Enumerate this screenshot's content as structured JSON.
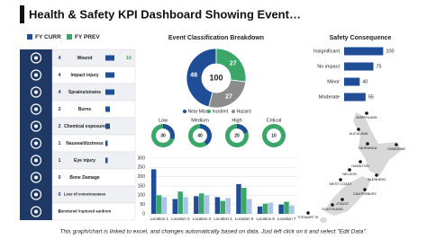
{
  "title": "Health & Safety KPI Dashboard Showing Event…",
  "legend": [
    {
      "label": "FY CURR",
      "color": "#1f4e96"
    },
    {
      "label": "FY PREV",
      "color": "#3aa66a"
    }
  ],
  "injuries": {
    "xlim": [
      0,
      12
    ],
    "color": "#1f4e96",
    "rows": [
      {
        "label": "Wound",
        "value": 4,
        "prev": 10
      },
      {
        "label": "Impact injury",
        "value": 4
      },
      {
        "label": "Sprains/strains",
        "value": 4
      },
      {
        "label": "Burns",
        "value": 2
      },
      {
        "label": "Chemical exposure",
        "value": 2
      },
      {
        "label": "Nausea/dizziness",
        "value": 1
      },
      {
        "label": "Eye injury",
        "value": 1
      },
      {
        "label": "Bone Damage",
        "value": 0
      },
      {
        "label": "Loss of consciousness",
        "value": 0
      },
      {
        "label": "Punctured /ruptured eardrum",
        "value": 0
      }
    ]
  },
  "chart_data": [
    {
      "type": "pie",
      "title": "Event Classification Breakdown",
      "total": 100,
      "categories": [
        "Near Miss",
        "Incident",
        "Hazard"
      ],
      "values": [
        46,
        27,
        27
      ],
      "colors": [
        "#1f4e96",
        "#3aa66a",
        "#8c8c8c"
      ]
    },
    {
      "type": "gauges",
      "categories": [
        "Low",
        "Medium",
        "High",
        "Critical"
      ],
      "values": [
        30,
        40,
        20,
        10
      ],
      "colors": [
        "#1f4e96",
        "#1f4e96",
        "#1f4e96",
        "#3aa66a"
      ],
      "track": "#3aa66a"
    },
    {
      "type": "bar",
      "categories": [
        "Location 1",
        "Location 2",
        "Location 3",
        "Location 4",
        "Location 5",
        "Location 6",
        "Location 7"
      ],
      "series": [
        {
          "color": "#1f4e96",
          "values": [
            240,
            80,
            95,
            90,
            160,
            40,
            50
          ]
        },
        {
          "color": "#3aa66a",
          "values": [
            100,
            120,
            110,
            70,
            140,
            55,
            65
          ]
        },
        {
          "color": "#a9c4e4",
          "values": [
            90,
            90,
            100,
            85,
            80,
            60,
            45
          ]
        }
      ],
      "ylim": [
        0,
        300
      ],
      "yticks": [
        0,
        50,
        100,
        150,
        200,
        250,
        300
      ],
      "grid": true
    },
    {
      "type": "hbar",
      "title": "Safety Consequence",
      "categories": [
        "Insignificant",
        "No impact",
        "Minor",
        "Moderate"
      ],
      "values": [
        100,
        75,
        40,
        55
      ],
      "color": "#1f4e96",
      "xlim": [
        0,
        120
      ]
    }
  ],
  "map": {
    "places": [
      "NORTHLAND",
      "AUCKLAND",
      "TAURANGA",
      "GISBORNE",
      "HAMILTON",
      "NELSON",
      "BLENHEIM",
      "WEST COAST",
      "CANTERBURY",
      "OTAGO",
      "SOUTHLAND",
      "STEWART IS"
    ]
  },
  "footer": "This graph/chart is linked to excel, and changes automatically based on data. Just left click on it and select \"Edit Data\"."
}
